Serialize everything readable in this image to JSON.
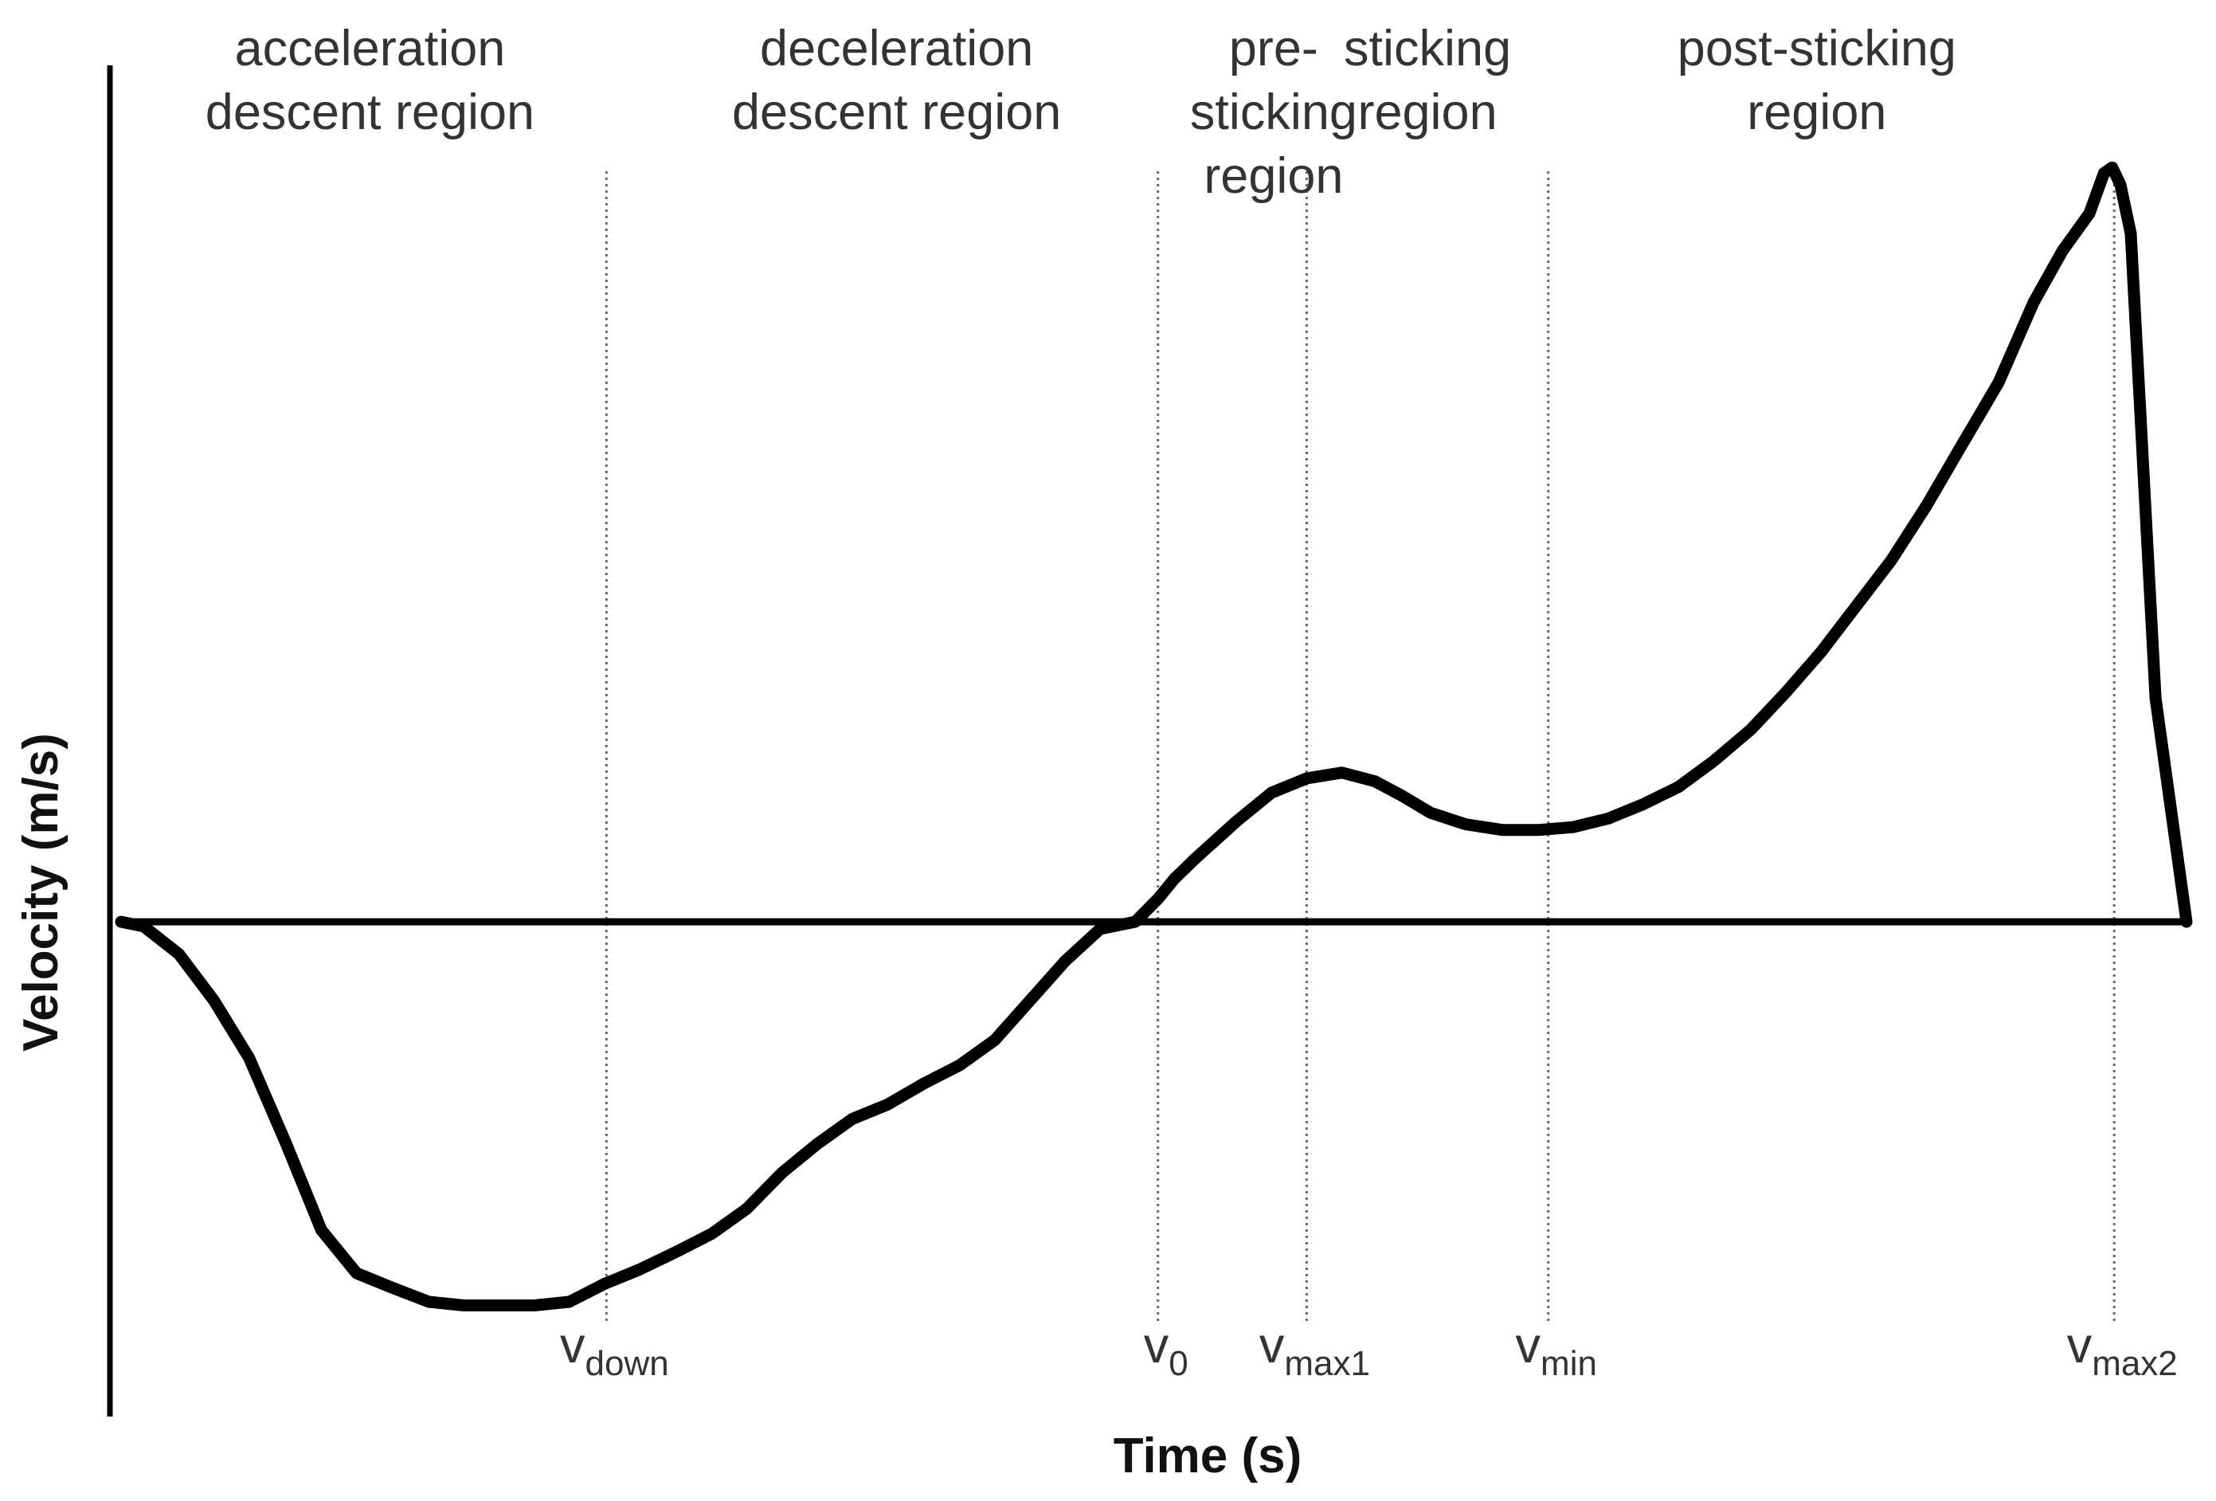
{
  "chart_data": {
    "type": "line",
    "xlabel": "Time (s)",
    "ylabel": "Velocity (m/s)",
    "grid": false,
    "line_color": "#000000",
    "region_labels": [
      {
        "id": "acceleration-descent",
        "lines": [
          "acceleration",
          "descent region"
        ]
      },
      {
        "id": "deceleration-descent",
        "lines": [
          "deceleration",
          "descent region"
        ]
      },
      {
        "id": "pre-sticking",
        "lines": [
          "pre-",
          "sticking",
          "region"
        ]
      },
      {
        "id": "sticking",
        "lines": [
          "sticking",
          "region"
        ]
      },
      {
        "id": "post-sticking",
        "lines": [
          "post-sticking",
          "region"
        ]
      }
    ],
    "markers": [
      {
        "id": "v-down",
        "main": "v",
        "sub": "down"
      },
      {
        "id": "v-0",
        "main": "v",
        "sub": "0"
      },
      {
        "id": "v-max1",
        "main": "v",
        "sub": "max1"
      },
      {
        "id": "v-min",
        "main": "v",
        "sub": "min"
      },
      {
        "id": "v-max2",
        "main": "v",
        "sub": "max2"
      }
    ],
    "curve": {
      "x": [
        0.0,
        0.011,
        0.028,
        0.045,
        0.062,
        0.08,
        0.097,
        0.114,
        0.131,
        0.149,
        0.166,
        0.183,
        0.2,
        0.217,
        0.234,
        0.251,
        0.269,
        0.286,
        0.303,
        0.32,
        0.337,
        0.354,
        0.371,
        0.389,
        0.406,
        0.423,
        0.44,
        0.457,
        0.474,
        0.491,
        0.502,
        0.51,
        0.52,
        0.54,
        0.557,
        0.574,
        0.591,
        0.607,
        0.62,
        0.634,
        0.651,
        0.669,
        0.686,
        0.703,
        0.72,
        0.737,
        0.754,
        0.771,
        0.789,
        0.806,
        0.823,
        0.84,
        0.857,
        0.874,
        0.891,
        0.909,
        0.926,
        0.94,
        0.953,
        0.96,
        0.964,
        0.968,
        0.973,
        0.985,
        1.0
      ],
      "y": [
        0.0,
        -0.013,
        -0.09,
        -0.22,
        -0.38,
        -0.62,
        -0.86,
        -0.98,
        -1.02,
        -1.06,
        -1.07,
        -1.07,
        -1.07,
        -1.06,
        -1.01,
        -0.97,
        -0.92,
        -0.87,
        -0.8,
        -0.7,
        -0.62,
        -0.55,
        -0.51,
        -0.45,
        -0.4,
        -0.33,
        -0.22,
        -0.11,
        -0.02,
        0.0,
        0.08,
        0.15,
        0.22,
        0.35,
        0.45,
        0.5,
        0.52,
        0.49,
        0.44,
        0.38,
        0.34,
        0.32,
        0.32,
        0.33,
        0.36,
        0.41,
        0.47,
        0.56,
        0.67,
        0.8,
        0.94,
        1.1,
        1.26,
        1.45,
        1.66,
        1.88,
        2.16,
        2.34,
        2.47,
        2.61,
        2.63,
        2.57,
        2.4,
        0.78,
        0.0
      ]
    },
    "marker_x": {
      "v-down": 0.235,
      "v-0": 0.502,
      "v-max1": 0.574,
      "v-min": 0.691,
      "v-max2": 0.965
    },
    "boundary_x": [
      0.235,
      0.502,
      0.574,
      0.691
    ],
    "ylim": [
      -1.3,
      2.65
    ]
  }
}
